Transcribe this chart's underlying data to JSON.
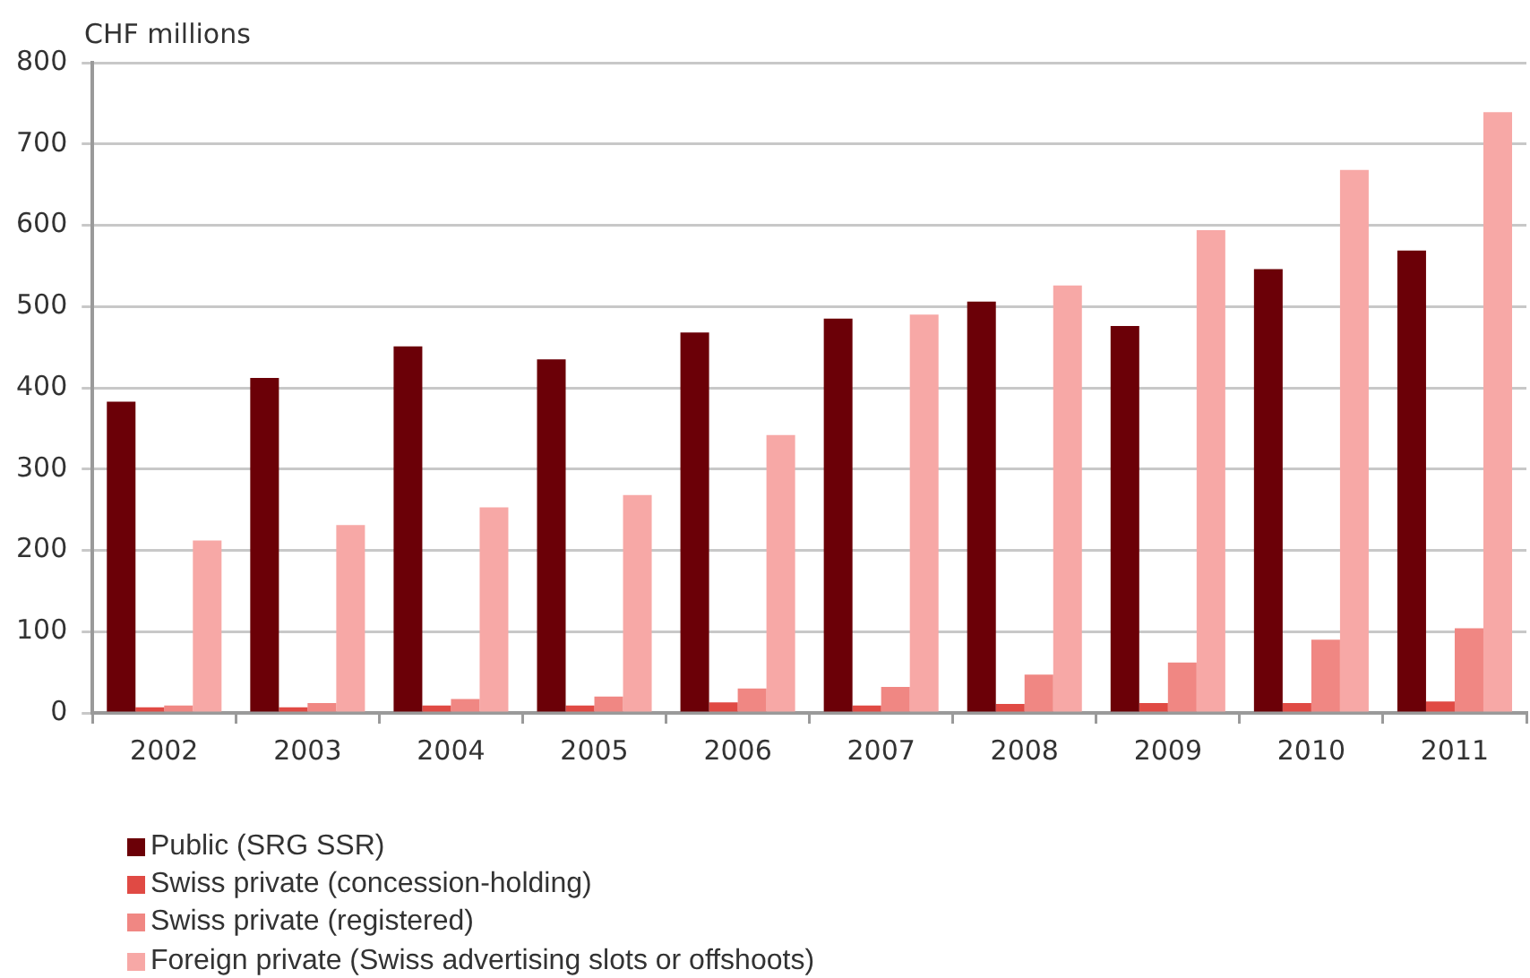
{
  "chart_data": {
    "type": "bar",
    "ylabel": "CHF millions",
    "categories": [
      "2002",
      "2003",
      "2004",
      "2005",
      "2006",
      "2007",
      "2008",
      "2009",
      "2010",
      "2011"
    ],
    "series": [
      {
        "name": "Public (SRG SSR)",
        "color": "#6b0007",
        "values": [
          383,
          412,
          451,
          435,
          468,
          485,
          506,
          476,
          546,
          569
        ]
      },
      {
        "name": "Swiss private (concession-holding)",
        "color": "#e04a44",
        "values": [
          7,
          7,
          9,
          9,
          13,
          9,
          11,
          12,
          12,
          14
        ]
      },
      {
        "name": "Swiss private (registered)",
        "color": "#f08783",
        "values": [
          9,
          12,
          17,
          20,
          30,
          32,
          47,
          62,
          90,
          104
        ]
      },
      {
        "name": "Foreign private (Swiss advertising slots or offshoots)",
        "color": "#f7a8a6",
        "values": [
          212,
          231,
          253,
          268,
          342,
          490,
          526,
          594,
          668,
          739
        ]
      }
    ],
    "ylim": [
      0,
      800
    ],
    "yticks": [
      0,
      100,
      200,
      300,
      400,
      500,
      600,
      700,
      800
    ],
    "grid": "y",
    "legend": "bottom left"
  }
}
